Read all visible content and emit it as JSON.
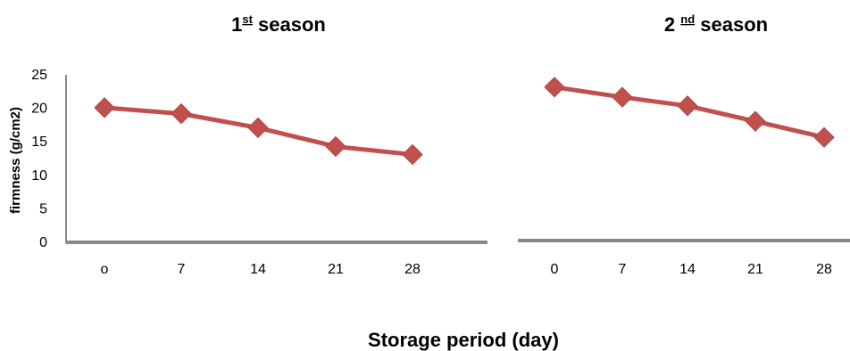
{
  "chart_data": [
    {
      "type": "line",
      "title": {
        "main": "1",
        "sup": "st",
        "rest": " season"
      },
      "ylabel": "firmness (g/cm2)",
      "categories": [
        "o",
        "7",
        "14",
        "21",
        "28"
      ],
      "y_ticks": [
        "0",
        "5",
        "10",
        "15",
        "20",
        "25"
      ],
      "ylim": [
        0,
        25
      ],
      "values": [
        20.1,
        19.2,
        17.1,
        14.3,
        13.1
      ],
      "color": "#c0504d",
      "marker": "diamond",
      "grid": false
    },
    {
      "type": "line",
      "title": {
        "main": "2 ",
        "sup": "nd",
        "rest": " season"
      },
      "categories": [
        "0",
        "7",
        "14",
        "21",
        "28"
      ],
      "ylim": [
        0,
        25
      ],
      "values": [
        22.9,
        21.4,
        20.1,
        17.8,
        15.4
      ],
      "color": "#c0504d",
      "marker": "diamond",
      "grid": false
    }
  ],
  "xlabel": "Storage period (day)",
  "axis_color": "#888888"
}
